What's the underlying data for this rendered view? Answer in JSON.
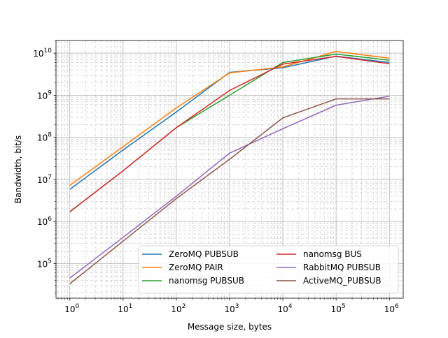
{
  "chart_data": {
    "type": "line",
    "title": "",
    "xlabel": "Message size, bytes",
    "ylabel": "Bandwidth, bit/s",
    "xscale": "log",
    "yscale": "log",
    "xlim": [
      0.55,
      1820000
    ],
    "ylim": [
      15000,
      20000000000
    ],
    "grid": "major and minor, dashed minor",
    "legend_position": "lower right, two columns",
    "x": [
      1,
      10,
      100,
      1000,
      10000,
      100000,
      1000000
    ],
    "x_ticks": [
      {
        "value": 1,
        "base": "10",
        "exp": "0"
      },
      {
        "value": 10,
        "base": "10",
        "exp": "1"
      },
      {
        "value": 100,
        "base": "10",
        "exp": "2"
      },
      {
        "value": 1000,
        "base": "10",
        "exp": "3"
      },
      {
        "value": 10000,
        "base": "10",
        "exp": "4"
      },
      {
        "value": 100000,
        "base": "10",
        "exp": "5"
      },
      {
        "value": 1000000,
        "base": "10",
        "exp": "6"
      }
    ],
    "y_ticks": [
      {
        "value": 100000,
        "base": "10",
        "exp": "5"
      },
      {
        "value": 1000000,
        "base": "10",
        "exp": "6"
      },
      {
        "value": 10000000,
        "base": "10",
        "exp": "7"
      },
      {
        "value": 100000000,
        "base": "10",
        "exp": "8"
      },
      {
        "value": 1000000000,
        "base": "10",
        "exp": "9"
      },
      {
        "value": 10000000000,
        "base": "10",
        "exp": "10"
      }
    ],
    "series": [
      {
        "name": "ZeroMQ PUBSUB",
        "color": "#1f77b4",
        "values": [
          5800000,
          50000000,
          400000000,
          3500000000,
          4500000000,
          8500000000,
          6000000000
        ]
      },
      {
        "name": "ZeroMQ PAIR",
        "color": "#ff7f0e",
        "values": [
          7200000,
          60000000,
          500000000,
          3400000000,
          4700000000,
          11000000000,
          7600000000
        ]
      },
      {
        "name": "nanomsg PUBSUB",
        "color": "#2ca02c",
        "values": [
          1700000,
          16000000,
          170000000,
          1000000000,
          6000000000,
          9500000000,
          6800000000
        ]
      },
      {
        "name": "nanomsg BUS",
        "color": "#d62728",
        "values": [
          1700000,
          16000000,
          170000000,
          1300000000,
          5500000000,
          8400000000,
          5600000000
        ]
      },
      {
        "name": "RabbitMQ PUBSUB",
        "color": "#9467bd",
        "values": [
          45000,
          420000,
          4000000,
          42000000,
          160000000,
          580000000,
          950000000
        ]
      },
      {
        "name": "ActiveMQ_PUBSUB",
        "color": "#8c564b",
        "values": [
          33000,
          340000,
          3500000,
          30000000,
          290000000,
          820000000,
          820000000
        ]
      }
    ]
  }
}
